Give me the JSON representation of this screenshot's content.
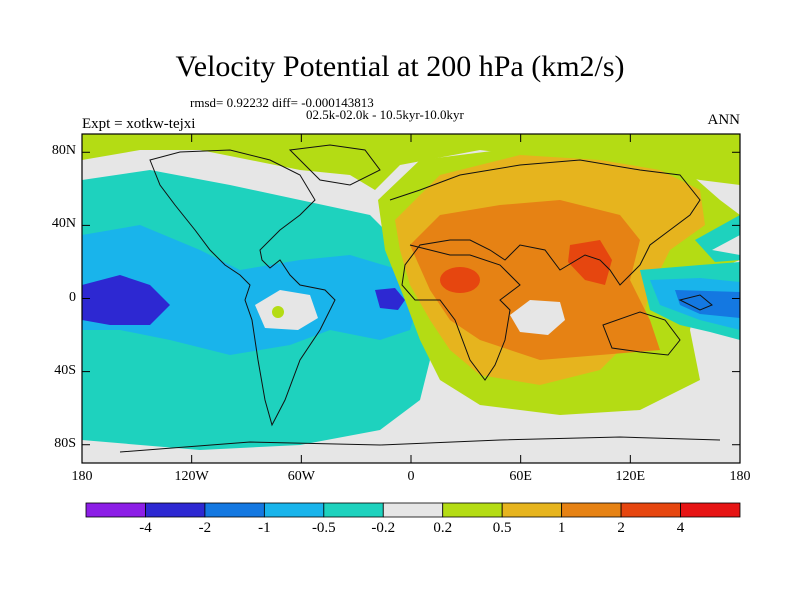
{
  "chart_data": {
    "type": "heatmap",
    "title": "Velocity Potential at 200 hPa (km2/s)",
    "stats": "rmsd= 0.92232 diff= -0.000143813",
    "period": "02.5k-02.0k - 10.5kyr-10.0kyr",
    "left_label": "Expt = xotkw-tejxi",
    "right_label": "ANN",
    "projection": "cylindrical equidistant, longitude 180 to 180, latitude -90 to 90",
    "xlim": [
      -180,
      180
    ],
    "ylim": [
      -90,
      90
    ],
    "x_ticks": [
      {
        "value": -180,
        "label": "180"
      },
      {
        "value": -120,
        "label": "120W"
      },
      {
        "value": -60,
        "label": "60W"
      },
      {
        "value": 0,
        "label": "0"
      },
      {
        "value": 60,
        "label": "60E"
      },
      {
        "value": 120,
        "label": "120E"
      },
      {
        "value": 180,
        "label": "180"
      }
    ],
    "y_ticks": [
      {
        "value": 80,
        "label": "80N"
      },
      {
        "value": 40,
        "label": "40N"
      },
      {
        "value": 0,
        "label": "0"
      },
      {
        "value": -40,
        "label": "40S"
      },
      {
        "value": -80,
        "label": "80S"
      }
    ],
    "colorbar": {
      "levels": [
        "-4",
        "-2",
        "-1",
        "-0.5",
        "-0.2",
        "0.2",
        "0.5",
        "1",
        "2",
        "4"
      ],
      "colors": [
        "#8c1ee6",
        "#2d28d2",
        "#1478e1",
        "#19b4eb",
        "#1ed2be",
        "#e6e6e6",
        "#b4dc14",
        "#e6b41e",
        "#e68214",
        "#e6460f",
        "#e61414"
      ]
    },
    "field_regions": [
      {
        "name": "NH high latitudes",
        "level_index": 6,
        "lon": [
          -180,
          180
        ],
        "lat": [
          60,
          90
        ]
      },
      {
        "name": "Pacific / Atlantic sector",
        "level_index": 4,
        "lon": [
          -180,
          0
        ],
        "lat": [
          -70,
          45
        ]
      },
      {
        "name": "tropical Pacific west",
        "level_index": 3,
        "lon": [
          -180,
          -90
        ],
        "lat": [
          -25,
          25
        ]
      },
      {
        "name": "central Pacific minimum",
        "level_index": 1,
        "lon": [
          -180,
          -150
        ],
        "lat": [
          -10,
          8
        ]
      },
      {
        "name": "equatorial Atlantic minimum",
        "level_index": 1,
        "lon": [
          -22,
          -8
        ],
        "lat": [
          -5,
          5
        ]
      },
      {
        "name": "South America center",
        "level_index": 5,
        "lon": [
          -60,
          -35
        ],
        "lat": [
          -12,
          2
        ]
      },
      {
        "name": "Africa-Eurasia sector",
        "level_index": 7,
        "lon": [
          10,
          130
        ],
        "lat": [
          -45,
          75
        ]
      },
      {
        "name": "Africa-Asia core",
        "level_index": 8,
        "lon": [
          -5,
          115
        ],
        "lat": [
          -30,
          40
        ]
      },
      {
        "name": "Sahara maximum",
        "level_index": 9,
        "lon": [
          5,
          35
        ],
        "lat": [
          0,
          25
        ]
      },
      {
        "name": "South Asia maximum",
        "level_index": 9,
        "lon": [
          90,
          105
        ],
        "lat": [
          10,
          30
        ]
      },
      {
        "name": "Indian Ocean center",
        "level_index": 5,
        "lon": [
          55,
          80
        ],
        "lat": [
          -15,
          0
        ]
      },
      {
        "name": "western Pacific minimum",
        "level_index": 2,
        "lon": [
          130,
          180
        ],
        "lat": [
          -15,
          10
        ]
      },
      {
        "name": "southern high latitudes",
        "level_index": 5,
        "lon": [
          -180,
          180
        ],
        "lat": [
          -90,
          -70
        ]
      }
    ]
  }
}
